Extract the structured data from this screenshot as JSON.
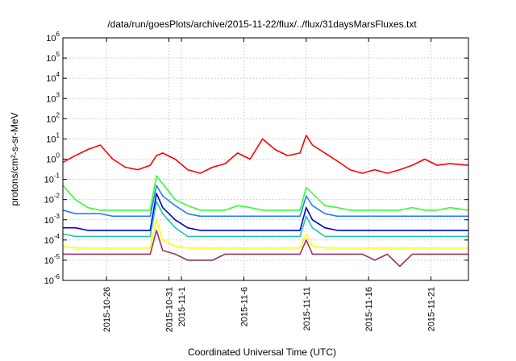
{
  "chart_data": {
    "type": "line",
    "title": "/data/run/goesPlots/archive/2015-11-22/flux/../flux/31daysMarsFluxes.txt",
    "xlabel": "Coordinated Universal Time (UTC)",
    "ylabel": "protons/cm²-s-sr-MeV",
    "yscale": "log",
    "ylim_exponent": [
      -6,
      6
    ],
    "y_ticks": [
      {
        "base": "10",
        "exp": "-6"
      },
      {
        "base": "10",
        "exp": "-5"
      },
      {
        "base": "10",
        "exp": "-4"
      },
      {
        "base": "10",
        "exp": "-3"
      },
      {
        "base": "10",
        "exp": "-2"
      },
      {
        "base": "10",
        "exp": "-1"
      },
      {
        "base": "10",
        "exp": "0"
      },
      {
        "base": "10",
        "exp": "1"
      },
      {
        "base": "10",
        "exp": "2"
      },
      {
        "base": "10",
        "exp": "3"
      },
      {
        "base": "10",
        "exp": "4"
      },
      {
        "base": "10",
        "exp": "5"
      },
      {
        "base": "10",
        "exp": "6"
      }
    ],
    "xlim": [
      "2015-10-22T12:00",
      "2015-11-24T00:00"
    ],
    "x_ticks": [
      "2015-10-26",
      "2015-10-31",
      "2015-11-1",
      "2015-11-6",
      "2015-11-11",
      "2015-11-16",
      "2015-11-21"
    ],
    "x_tick_dates": [
      "2015-10-26",
      "2015-10-31",
      "2015-11-01",
      "2015-11-06",
      "2015-11-11",
      "2015-11-16",
      "2015-11-21"
    ],
    "grid": true,
    "legend": "none",
    "x": [
      "2015-10-22T12:00",
      "2015-10-23T12:00",
      "2015-10-24T12:00",
      "2015-10-25T12:00",
      "2015-10-26T12:00",
      "2015-10-27T12:00",
      "2015-10-28T12:00",
      "2015-10-29T12:00",
      "2015-10-30T00:00",
      "2015-10-30T12:00",
      "2015-10-31T12:00",
      "2015-11-01T12:00",
      "2015-11-02T12:00",
      "2015-11-03T12:00",
      "2015-11-04T12:00",
      "2015-11-05T12:00",
      "2015-11-06T12:00",
      "2015-11-07T12:00",
      "2015-11-08T12:00",
      "2015-11-09T12:00",
      "2015-11-10T12:00",
      "2015-11-11T00:00",
      "2015-11-11T12:00",
      "2015-11-12T12:00",
      "2015-11-13T12:00",
      "2015-11-14T12:00",
      "2015-11-15T12:00",
      "2015-11-16T12:00",
      "2015-11-17T12:00",
      "2015-11-18T12:00",
      "2015-11-19T12:00",
      "2015-11-20T12:00",
      "2015-11-21T12:00",
      "2015-11-22T12:00",
      "2015-11-24T00:00"
    ],
    "series": [
      {
        "color": "#ff0000",
        "values": [
          0.7,
          1.5,
          3,
          5,
          1,
          0.4,
          0.3,
          0.5,
          1.5,
          2,
          1,
          0.3,
          0.2,
          0.4,
          0.6,
          2,
          1,
          10,
          3,
          1.5,
          2,
          15,
          5,
          2,
          0.8,
          0.3,
          0.2,
          0.3,
          0.2,
          0.3,
          0.5,
          1,
          0.5,
          0.6,
          0.5
        ]
      },
      {
        "color": "#33ff33",
        "values": [
          0.05,
          0.01,
          0.004,
          0.003,
          0.003,
          0.003,
          0.003,
          0.003,
          0.15,
          0.06,
          0.01,
          0.005,
          0.003,
          0.003,
          0.003,
          0.005,
          0.004,
          0.003,
          0.003,
          0.003,
          0.003,
          0.04,
          0.02,
          0.005,
          0.004,
          0.003,
          0.003,
          0.003,
          0.003,
          0.003,
          0.004,
          0.003,
          0.003,
          0.004,
          0.003
        ]
      },
      {
        "color": "#2080ff",
        "values": [
          0.003,
          0.002,
          0.002,
          0.002,
          0.0015,
          0.0015,
          0.0015,
          0.0015,
          0.05,
          0.015,
          0.005,
          0.002,
          0.0015,
          0.0015,
          0.0015,
          0.0015,
          0.0015,
          0.0015,
          0.0015,
          0.0015,
          0.0015,
          0.015,
          0.005,
          0.002,
          0.0015,
          0.0015,
          0.0015,
          0.0015,
          0.0015,
          0.0015,
          0.0015,
          0.0015,
          0.0015,
          0.0015,
          0.0015
        ]
      },
      {
        "color": "#0000cc",
        "values": [
          0.0004,
          0.0004,
          0.0003,
          0.0003,
          0.0003,
          0.0003,
          0.0003,
          0.0003,
          0.02,
          0.004,
          0.001,
          0.0004,
          0.0003,
          0.0003,
          0.0003,
          0.0003,
          0.0003,
          0.0003,
          0.0003,
          0.0003,
          0.0003,
          0.004,
          0.001,
          0.0004,
          0.0003,
          0.0003,
          0.0003,
          0.0003,
          0.0003,
          0.0003,
          0.0003,
          0.0003,
          0.0003,
          0.0003,
          0.0003
        ]
      },
      {
        "color": "#20c8a8",
        "values": [
          0.0002,
          0.00015,
          0.00015,
          0.00015,
          0.00015,
          0.00015,
          0.00015,
          0.00015,
          0.008,
          0.002,
          0.0004,
          0.00015,
          0.00015,
          0.00015,
          0.00015,
          0.00015,
          0.00015,
          0.00015,
          0.00015,
          0.00015,
          0.00015,
          0.0015,
          0.0004,
          0.00015,
          0.00015,
          0.00015,
          0.00015,
          0.00015,
          0.00015,
          0.00015,
          0.00015,
          0.00015,
          0.00015,
          0.00015,
          0.00015
        ]
      },
      {
        "color": "#ffff00",
        "values": [
          5e-05,
          4e-05,
          4e-05,
          4e-05,
          4e-05,
          4e-05,
          4e-05,
          4e-05,
          0.001,
          0.0001,
          5e-05,
          4e-05,
          4e-05,
          4e-05,
          4e-05,
          4e-05,
          4e-05,
          4e-05,
          4e-05,
          4e-05,
          4e-05,
          0.0002,
          5e-05,
          4e-05,
          4e-05,
          4e-05,
          4e-05,
          4e-05,
          4e-05,
          4e-05,
          4e-05,
          4e-05,
          4e-05,
          4e-05,
          4e-05
        ]
      },
      {
        "color": "#993366",
        "values": [
          2e-05,
          2e-05,
          2e-05,
          2e-05,
          2e-05,
          2e-05,
          2e-05,
          2e-05,
          0.0003,
          3e-05,
          2e-05,
          1e-05,
          1e-05,
          1e-05,
          2e-05,
          2e-05,
          2e-05,
          2e-05,
          2e-05,
          2e-05,
          2e-05,
          0.0001,
          2e-05,
          2e-05,
          2e-05,
          2e-05,
          2e-05,
          1e-05,
          2e-05,
          5e-06,
          2e-05,
          2e-05,
          2e-05,
          2e-05,
          2e-05
        ]
      }
    ]
  }
}
